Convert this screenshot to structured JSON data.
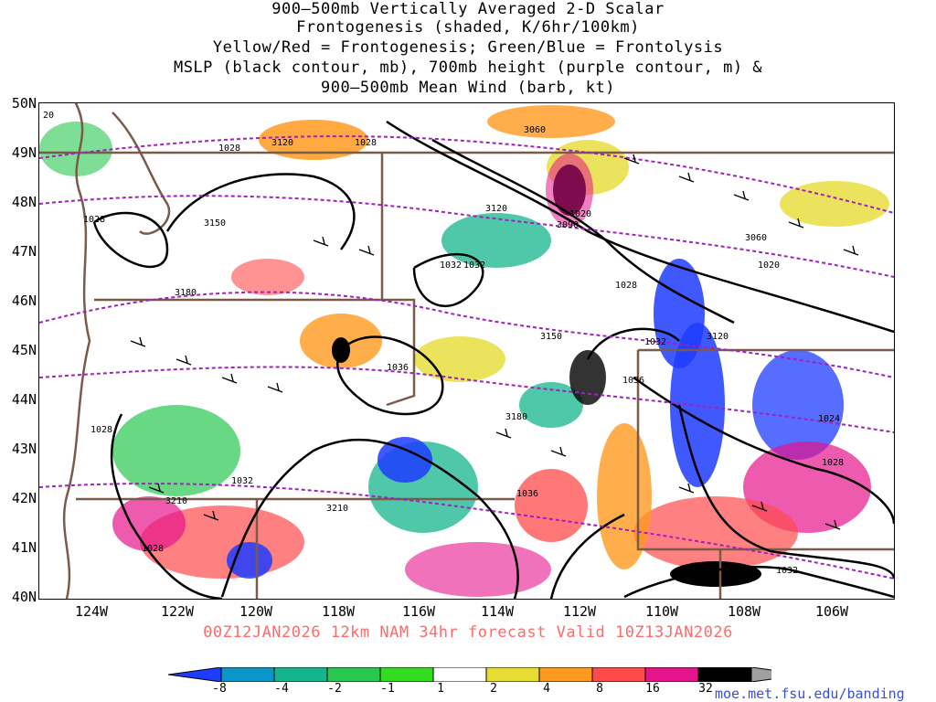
{
  "title": {
    "lines": [
      "900–500mb Vertically Averaged 2-D Scalar",
      "Frontogenesis (shaded, K/6hr/100km)",
      "Yellow/Red = Frontogenesis;  Green/Blue = Frontolysis",
      "MSLP (black contour, mb), 700mb height (purple contour, m) &",
      "900–500mb Mean Wind (barb, kt)"
    ]
  },
  "axes": {
    "latitudes": [
      "50N",
      "49N",
      "48N",
      "47N",
      "46N",
      "45N",
      "44N",
      "43N",
      "42N",
      "41N",
      "40N"
    ],
    "longitudes": [
      "124W",
      "122W",
      "120W",
      "118W",
      "116W",
      "114W",
      "112W",
      "110W",
      "108W",
      "106W"
    ]
  },
  "contour_labels": {
    "mslp": [
      "20",
      "1028",
      "1028",
      "1028",
      "1028",
      "1032",
      "1036",
      "1036",
      "1032",
      "1036",
      "1020",
      "1020",
      "1028",
      "1032",
      "1024",
      "1028",
      "1032",
      "1028",
      "1032"
    ],
    "height": [
      "3120",
      "3060",
      "3150",
      "3180",
      "3120",
      "3090",
      "3060",
      "3150",
      "3180",
      "3120",
      "3210",
      "3210"
    ]
  },
  "valid_text": "00Z12JAN2026 12km NAM 34hr forecast Valid 10Z13JAN2026",
  "colorbar": {
    "labels": [
      "-8",
      "-4",
      "-2",
      "-1",
      "1",
      "2",
      "4",
      "8",
      "16",
      "32"
    ],
    "colors": [
      "#1e3cff",
      "#0a96c8",
      "#14b48c",
      "#28c850",
      "#32dc1e",
      "#ffffff",
      "#e6dc32",
      "#ff9a1e",
      "#ff4a4a",
      "#e6148c",
      "#000000",
      "#a0a0a0"
    ]
  },
  "colors": {
    "mslp_contour": "#000000",
    "height_contour": "#a020c0",
    "state_border": "#7a5a48"
  },
  "credit": "moe.met.fsu.edu/banding"
}
